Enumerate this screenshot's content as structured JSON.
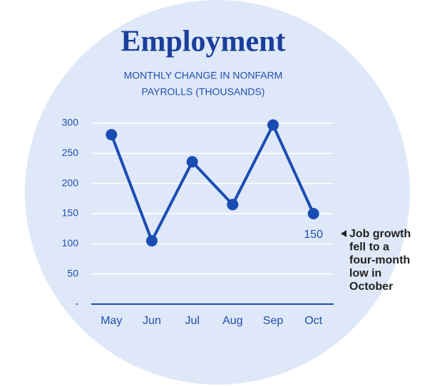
{
  "chart_data": {
    "type": "line",
    "title": "Employment",
    "subtitle": [
      "MONTHLY CHANGE IN NONFARM",
      "PAYROLLS (THOUSANDS)"
    ],
    "categories": [
      "May",
      "Jun",
      "Jul",
      "Aug",
      "Sep",
      "Oct"
    ],
    "series": [
      {
        "name": "Nonfarm payrolls",
        "color": "#1a4db3",
        "values": [
          281,
          105,
          236,
          165,
          297,
          150
        ],
        "value_labels": [
          null,
          null,
          null,
          null,
          null,
          "150"
        ]
      }
    ],
    "ylim": [
      0,
      300
    ],
    "yticks": [
      {
        "value": 0,
        "label": "-"
      },
      50,
      100,
      150,
      200,
      250,
      300
    ],
    "grid": true,
    "annotation": [
      "Job growth",
      "fell to a",
      "four-month",
      "low in",
      "October"
    ]
  }
}
